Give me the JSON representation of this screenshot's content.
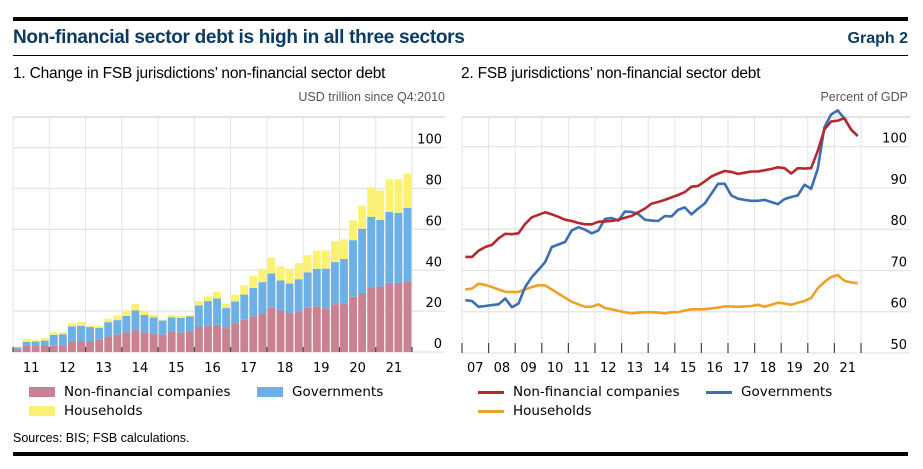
{
  "header": {
    "title": "Non-financial sector debt is high in all three sectors",
    "graph_number": "Graph 2"
  },
  "footer": {
    "sources": "Sources: BIS; FSB calculations."
  },
  "colors": {
    "title": "#0b3a62",
    "bar_nfc": "#c98292",
    "bar_gov": "#6cb0e6",
    "bar_hh": "#fdf172",
    "line_nfc": "#b5282e",
    "line_gov": "#3b6eb5",
    "line_hh": "#eda226",
    "grid": "#e3e3e3"
  },
  "chart_data": [
    {
      "type": "bar",
      "stacked": true,
      "title": "1. Change in FSB jurisdictions’ non-financial sector debt",
      "unit_label": "USD trillion since Q4:2010",
      "xlabel": "",
      "ylabel": "",
      "ylim": [
        0,
        115
      ],
      "yticks": [
        0,
        20,
        40,
        60,
        80,
        100
      ],
      "ytick_labels": [
        "0",
        "20",
        "40",
        "60",
        "80",
        "100"
      ],
      "y_axis_side": "right",
      "grid": true,
      "x_start_year": 2011,
      "x_end_year": 2021,
      "periods_per_year": 4,
      "xtick_labels": [
        "11",
        "12",
        "13",
        "14",
        "15",
        "16",
        "17",
        "18",
        "19",
        "20",
        "21"
      ],
      "categories": [
        "Q1 2011",
        "Q2 2011",
        "Q3 2011",
        "Q4 2011",
        "Q1 2012",
        "Q2 2012",
        "Q3 2012",
        "Q4 2012",
        "Q1 2013",
        "Q2 2013",
        "Q3 2013",
        "Q4 2013",
        "Q1 2014",
        "Q2 2014",
        "Q3 2014",
        "Q4 2014",
        "Q1 2015",
        "Q2 2015",
        "Q3 2015",
        "Q4 2015",
        "Q1 2016",
        "Q2 2016",
        "Q3 2016",
        "Q4 2016",
        "Q1 2017",
        "Q2 2017",
        "Q3 2017",
        "Q4 2017",
        "Q1 2018",
        "Q2 2018",
        "Q3 2018",
        "Q4 2018",
        "Q1 2019",
        "Q2 2019",
        "Q3 2019",
        "Q4 2019",
        "Q1 2020",
        "Q2 2020",
        "Q3 2020",
        "Q4 2020",
        "Q1 2021",
        "Q2 2021",
        "Q3 2021",
        "Q4 2021"
      ],
      "series": [
        {
          "name": "Non-financial companies",
          "color": "#c98292",
          "values": [
            1.0,
            3.0,
            2.9,
            3.2,
            3.1,
            3.0,
            4.9,
            5.4,
            5.4,
            6.0,
            7.6,
            8.5,
            9.5,
            10.7,
            9.5,
            9.0,
            8.5,
            10.0,
            9.5,
            10.0,
            12.5,
            12.8,
            13.3,
            11.7,
            13.7,
            15.8,
            17.5,
            18.8,
            21.6,
            20.3,
            19.1,
            19.6,
            21.6,
            22.4,
            21.4,
            23.4,
            23.7,
            27.0,
            28.9,
            31.7,
            32.0,
            33.8,
            33.8,
            34.6
          ]
        },
        {
          "name": "Governments",
          "color": "#6cb0e6",
          "values": [
            1.2,
            2.0,
            2.2,
            2.4,
            5.3,
            5.7,
            7.6,
            7.4,
            6.8,
            5.8,
            7.0,
            7.1,
            8.2,
            9.7,
            8.6,
            7.9,
            6.9,
            7.0,
            7.2,
            7.4,
            10.3,
            12.1,
            12.9,
            9.8,
            11.1,
            12.3,
            13.9,
            15.4,
            16.8,
            14.7,
            14.4,
            16.0,
            17.4,
            18.3,
            19.4,
            20.6,
            21.9,
            27.7,
            31.4,
            34.5,
            32.7,
            34.7,
            34.3,
            36.0
          ]
        },
        {
          "name": "Households",
          "color": "#fdf172",
          "values": [
            0.4,
            1.5,
            0.9,
            1.3,
            1.3,
            1.0,
            1.6,
            1.8,
            0.8,
            1.0,
            1.7,
            2.3,
            2.7,
            3.2,
            2.1,
            1.3,
            0.4,
            1.2,
            1.0,
            0.6,
            2.1,
            2.3,
            3.2,
            2.1,
            3.3,
            4.6,
            5.7,
            6.5,
            7.7,
            7.0,
            7.2,
            7.9,
            8.4,
            9.0,
            8.9,
            10.2,
            9.5,
            9.7,
            11.4,
            14.4,
            14.4,
            16.0,
            16.4,
            16.8
          ]
        }
      ],
      "legend": [
        "Non-financial companies",
        "Governments",
        "Households"
      ],
      "legend_position": "bottom"
    },
    {
      "type": "line",
      "title": "2. FSB jurisdictions’ non-financial sector debt",
      "unit_label": "Percent of GDP",
      "xlabel": "",
      "ylabel": "",
      "ylim": [
        50,
        110
      ],
      "yticks": [
        50,
        60,
        70,
        80,
        90,
        100
      ],
      "ytick_labels": [
        "50",
        "60",
        "70",
        "80",
        "90",
        "100"
      ],
      "y_axis_side": "right",
      "grid": true,
      "x_start_year": 2007,
      "x_end_year": 2021,
      "periods_per_year": 4,
      "xtick_labels": [
        "07",
        "08",
        "09",
        "10",
        "11",
        "12",
        "13",
        "14",
        "15",
        "16",
        "17",
        "18",
        "19",
        "20",
        "21"
      ],
      "series": [
        {
          "name": "Non-financial companies",
          "color": "#b5282e",
          "values": [
            73.3,
            73.3,
            74.8,
            75.7,
            76.2,
            77.8,
            78.9,
            78.8,
            79.0,
            81.3,
            82.9,
            83.5,
            84.1,
            83.6,
            83.0,
            82.3,
            82.0,
            81.5,
            81.2,
            81.2,
            81.8,
            81.9,
            82.0,
            82.3,
            82.8,
            83.2,
            84.1,
            85.0,
            86.2,
            86.6,
            87.1,
            87.7,
            88.3,
            89.0,
            90.3,
            90.5,
            91.6,
            92.8,
            93.5,
            94.1,
            93.9,
            93.4,
            93.7,
            94.0,
            94.0,
            94.3,
            94.6,
            95.0,
            94.8,
            93.5,
            94.8,
            94.7,
            94.8,
            99.0,
            104.2,
            106.1,
            106.3,
            106.9,
            104.2,
            102.6
          ]
        },
        {
          "name": "Governments",
          "color": "#3b6eb5",
          "values": [
            62.8,
            62.6,
            61.2,
            61.4,
            61.6,
            61.8,
            63.2,
            61.1,
            62.0,
            66.0,
            68.4,
            70.2,
            72.0,
            75.7,
            76.3,
            76.9,
            79.7,
            80.5,
            79.9,
            79.0,
            79.7,
            82.5,
            82.7,
            82.1,
            84.3,
            84.2,
            83.7,
            82.3,
            82.1,
            82.0,
            83.2,
            83.1,
            84.7,
            85.3,
            83.6,
            85.0,
            86.2,
            88.6,
            91.0,
            91.0,
            88.2,
            87.4,
            87.1,
            86.9,
            86.9,
            87.1,
            86.6,
            86.1,
            87.3,
            87.8,
            88.2,
            90.8,
            89.8,
            94.7,
            104.7,
            107.8,
            108.8,
            106.8,
            104.2,
            102.6
          ]
        },
        {
          "name": "Households",
          "color": "#eda226",
          "values": [
            65.4,
            65.6,
            66.8,
            66.5,
            66.0,
            65.4,
            64.8,
            64.8,
            64.8,
            65.4,
            66.0,
            66.4,
            66.4,
            65.4,
            64.4,
            63.4,
            62.4,
            61.8,
            61.2,
            61.2,
            61.8,
            60.9,
            60.6,
            60.2,
            59.9,
            59.6,
            59.8,
            59.9,
            59.9,
            59.8,
            59.6,
            59.9,
            59.9,
            60.3,
            60.6,
            60.6,
            60.6,
            60.8,
            61.0,
            61.3,
            61.3,
            61.2,
            61.3,
            61.4,
            61.7,
            61.2,
            61.7,
            62.2,
            62.0,
            61.7,
            62.2,
            62.6,
            63.3,
            65.7,
            67.2,
            68.4,
            68.9,
            67.5,
            67.1,
            66.9
          ]
        }
      ],
      "legend": [
        "Non-financial companies",
        "Governments",
        "Households"
      ],
      "legend_position": "bottom"
    }
  ]
}
